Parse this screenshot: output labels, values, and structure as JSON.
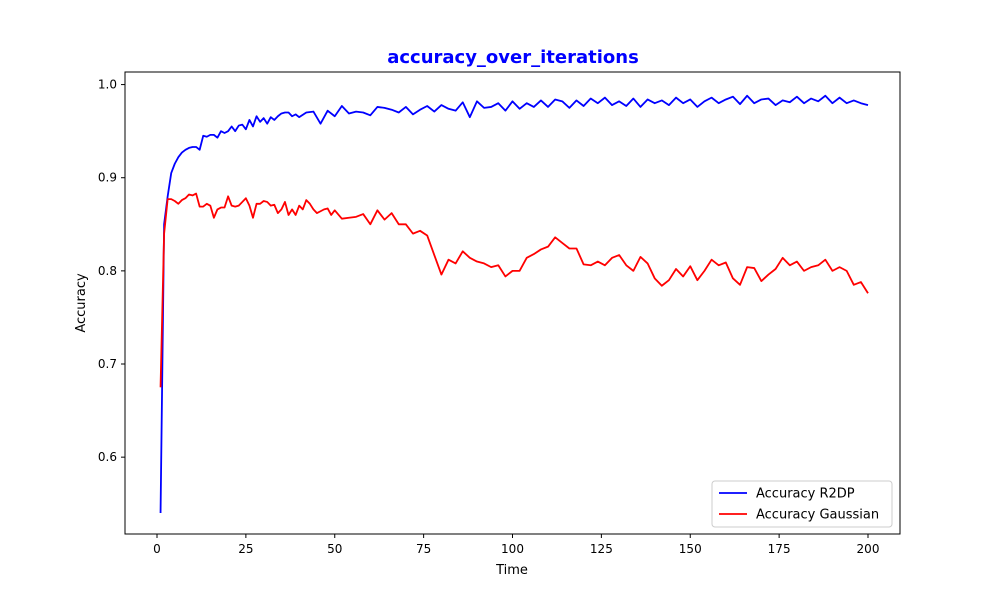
{
  "chart_data": {
    "type": "line",
    "title": "accuracy_over_iterations",
    "title_color": "#0000ff",
    "xlabel": "Time",
    "ylabel": "Accuracy",
    "xlim": [
      -9,
      209
    ],
    "ylim": [
      0.5175,
      1.0135
    ],
    "xticks": [
      0,
      25,
      50,
      75,
      100,
      125,
      150,
      175,
      200
    ],
    "xtick_labels": [
      "0",
      "25",
      "50",
      "75",
      "100",
      "125",
      "150",
      "175",
      "200"
    ],
    "yticks": [
      0.6,
      0.7,
      0.8,
      0.9,
      1.0
    ],
    "ytick_labels": [
      "0.6",
      "0.7",
      "0.8",
      "0.9",
      "1.0"
    ],
    "grid": false,
    "legend_position": "lower-right",
    "series": [
      {
        "name": "Accuracy R2DP",
        "color": "#0000ff",
        "x": [
          1,
          2,
          3,
          4,
          5,
          6,
          7,
          8,
          9,
          10,
          11,
          12,
          13,
          14,
          15,
          16,
          17,
          18,
          19,
          20,
          21,
          22,
          23,
          24,
          25,
          26,
          27,
          28,
          29,
          30,
          31,
          32,
          33,
          34,
          35,
          36,
          37,
          38,
          39,
          40,
          42,
          44,
          46,
          48,
          50,
          52,
          54,
          56,
          58,
          60,
          62,
          64,
          66,
          68,
          70,
          72,
          74,
          76,
          78,
          80,
          82,
          84,
          86,
          88,
          90,
          92,
          94,
          96,
          98,
          100,
          102,
          104,
          106,
          108,
          110,
          112,
          114,
          116,
          118,
          120,
          122,
          124,
          126,
          128,
          130,
          132,
          134,
          136,
          138,
          140,
          142,
          144,
          146,
          148,
          150,
          152,
          154,
          156,
          158,
          160,
          162,
          164,
          166,
          168,
          170,
          172,
          174,
          176,
          178,
          180,
          182,
          184,
          186,
          188,
          190,
          192,
          194,
          196,
          198,
          200
        ],
        "values": [
          0.54,
          0.85,
          0.88,
          0.905,
          0.915,
          0.922,
          0.927,
          0.93,
          0.932,
          0.933,
          0.933,
          0.93,
          0.945,
          0.944,
          0.946,
          0.946,
          0.943,
          0.95,
          0.948,
          0.95,
          0.955,
          0.95,
          0.956,
          0.957,
          0.952,
          0.962,
          0.955,
          0.966,
          0.96,
          0.964,
          0.958,
          0.965,
          0.962,
          0.966,
          0.969,
          0.97,
          0.97,
          0.966,
          0.968,
          0.965,
          0.97,
          0.971,
          0.958,
          0.972,
          0.966,
          0.977,
          0.969,
          0.971,
          0.97,
          0.967,
          0.976,
          0.975,
          0.973,
          0.97,
          0.976,
          0.968,
          0.973,
          0.977,
          0.971,
          0.978,
          0.974,
          0.972,
          0.981,
          0.965,
          0.982,
          0.975,
          0.976,
          0.98,
          0.972,
          0.982,
          0.974,
          0.98,
          0.976,
          0.983,
          0.976,
          0.984,
          0.982,
          0.975,
          0.983,
          0.977,
          0.985,
          0.98,
          0.986,
          0.978,
          0.982,
          0.977,
          0.985,
          0.976,
          0.984,
          0.98,
          0.983,
          0.978,
          0.986,
          0.98,
          0.984,
          0.976,
          0.982,
          0.986,
          0.98,
          0.984,
          0.987,
          0.979,
          0.988,
          0.98,
          0.984,
          0.985,
          0.978,
          0.983,
          0.981,
          0.987,
          0.98,
          0.985,
          0.982,
          0.988,
          0.98,
          0.986,
          0.98,
          0.983,
          0.98,
          0.978
        ]
      },
      {
        "name": "Accuracy Gaussian",
        "color": "#ff0000",
        "x": [
          1,
          2,
          3,
          4,
          5,
          6,
          7,
          8,
          9,
          10,
          11,
          12,
          13,
          14,
          15,
          16,
          17,
          18,
          19,
          20,
          21,
          22,
          23,
          24,
          25,
          26,
          27,
          28,
          29,
          30,
          31,
          32,
          33,
          34,
          35,
          36,
          37,
          38,
          39,
          40,
          41,
          42,
          43,
          44,
          45,
          46,
          47,
          48,
          49,
          50,
          52,
          54,
          56,
          58,
          60,
          62,
          64,
          66,
          68,
          70,
          72,
          74,
          76,
          78,
          80,
          82,
          84,
          86,
          88,
          90,
          92,
          94,
          96,
          98,
          100,
          102,
          104,
          106,
          108,
          110,
          112,
          114,
          116,
          118,
          120,
          122,
          124,
          126,
          128,
          130,
          132,
          134,
          136,
          138,
          140,
          142,
          144,
          146,
          148,
          150,
          152,
          154,
          156,
          158,
          160,
          162,
          164,
          166,
          168,
          170,
          172,
          174,
          176,
          178,
          180,
          182,
          184,
          186,
          188,
          190,
          192,
          194,
          196,
          198,
          200
        ],
        "values": [
          0.675,
          0.84,
          0.877,
          0.877,
          0.875,
          0.872,
          0.876,
          0.878,
          0.882,
          0.881,
          0.883,
          0.869,
          0.869,
          0.872,
          0.87,
          0.857,
          0.866,
          0.868,
          0.868,
          0.88,
          0.87,
          0.869,
          0.87,
          0.874,
          0.878,
          0.87,
          0.857,
          0.872,
          0.872,
          0.875,
          0.874,
          0.87,
          0.871,
          0.862,
          0.866,
          0.874,
          0.86,
          0.866,
          0.86,
          0.87,
          0.866,
          0.876,
          0.872,
          0.866,
          0.862,
          0.864,
          0.866,
          0.867,
          0.86,
          0.865,
          0.856,
          0.857,
          0.858,
          0.861,
          0.85,
          0.865,
          0.855,
          0.862,
          0.85,
          0.85,
          0.84,
          0.843,
          0.838,
          0.817,
          0.796,
          0.812,
          0.808,
          0.821,
          0.814,
          0.81,
          0.808,
          0.804,
          0.806,
          0.794,
          0.8,
          0.8,
          0.814,
          0.818,
          0.823,
          0.826,
          0.836,
          0.83,
          0.824,
          0.824,
          0.807,
          0.806,
          0.81,
          0.806,
          0.814,
          0.817,
          0.806,
          0.8,
          0.815,
          0.808,
          0.792,
          0.784,
          0.79,
          0.802,
          0.794,
          0.805,
          0.79,
          0.8,
          0.812,
          0.806,
          0.809,
          0.792,
          0.785,
          0.804,
          0.803,
          0.789,
          0.796,
          0.802,
          0.814,
          0.806,
          0.81,
          0.8,
          0.804,
          0.806,
          0.812,
          0.8,
          0.804,
          0.8,
          0.785,
          0.788,
          0.776
        ]
      }
    ]
  }
}
